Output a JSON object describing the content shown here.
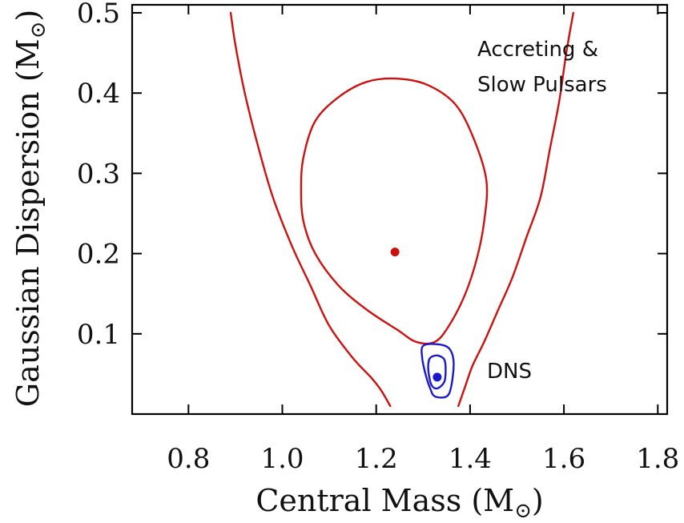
{
  "chart_data": {
    "type": "line",
    "xlabel": "Central Mass (M",
    "ylabel": "Gaussian Dispersion (M",
    "unit_symbol": "⊙",
    "xlim": [
      0.68,
      1.82
    ],
    "ylim": [
      0.0,
      0.51
    ],
    "x_ticks": [
      0.8,
      1.0,
      1.2,
      1.4,
      1.6,
      1.8
    ],
    "x_tick_labels": [
      "0.8",
      "1.0",
      "1.2",
      "1.4",
      "1.6",
      "1.8"
    ],
    "y_ticks": [
      0.1,
      0.2,
      0.3,
      0.4,
      0.5
    ],
    "y_tick_labels": [
      "0.1",
      "0.2",
      "0.3",
      "0.4",
      "0.5"
    ],
    "grid": false,
    "annotations": {
      "accreting_line1": "Accreting &",
      "accreting_line2": "Slow Pulsars",
      "dns": "DNS"
    },
    "series": [
      {
        "color": "#cc1111",
        "points": [
          [
            0.89,
            0.5
          ],
          [
            0.9,
            0.46
          ],
          [
            0.92,
            0.4
          ],
          [
            0.95,
            0.33
          ],
          [
            0.98,
            0.27
          ],
          [
            1.02,
            0.21
          ],
          [
            1.06,
            0.16
          ],
          [
            1.1,
            0.11
          ],
          [
            1.15,
            0.07
          ],
          [
            1.19,
            0.045
          ],
          [
            1.21,
            0.03
          ],
          [
            1.23,
            0.01
          ]
        ]
      },
      {
        "color": "#cc1111",
        "points": [
          [
            1.62,
            0.5
          ],
          [
            1.605,
            0.45
          ],
          [
            1.59,
            0.39
          ],
          [
            1.57,
            0.33
          ],
          [
            1.55,
            0.27
          ],
          [
            1.52,
            0.22
          ],
          [
            1.49,
            0.17
          ],
          [
            1.46,
            0.13
          ],
          [
            1.43,
            0.09
          ],
          [
            1.405,
            0.06
          ],
          [
            1.39,
            0.035
          ],
          [
            1.375,
            0.01
          ]
        ]
      },
      {
        "color": "#cc1111",
        "closed": true,
        "points": [
          [
            1.245,
            0.418
          ],
          [
            1.31,
            0.41
          ],
          [
            1.37,
            0.385
          ],
          [
            1.41,
            0.34
          ],
          [
            1.435,
            0.29
          ],
          [
            1.43,
            0.24
          ],
          [
            1.415,
            0.195
          ],
          [
            1.39,
            0.15
          ],
          [
            1.355,
            0.11
          ],
          [
            1.325,
            0.09
          ],
          [
            1.285,
            0.09
          ],
          [
            1.245,
            0.105
          ],
          [
            1.18,
            0.13
          ],
          [
            1.12,
            0.16
          ],
          [
            1.07,
            0.2
          ],
          [
            1.045,
            0.24
          ],
          [
            1.04,
            0.28
          ],
          [
            1.045,
            0.32
          ],
          [
            1.07,
            0.365
          ],
          [
            1.12,
            0.395
          ],
          [
            1.18,
            0.414
          ]
        ]
      },
      {
        "color": "#1a1acc",
        "closed": true,
        "points": [
          [
            1.3,
            0.085
          ],
          [
            1.33,
            0.087
          ],
          [
            1.355,
            0.082
          ],
          [
            1.365,
            0.065
          ],
          [
            1.36,
            0.035
          ],
          [
            1.35,
            0.022
          ],
          [
            1.325,
            0.022
          ],
          [
            1.315,
            0.032
          ],
          [
            1.305,
            0.05
          ],
          [
            1.298,
            0.07
          ]
        ]
      },
      {
        "color": "#1a1acc",
        "closed": true,
        "points": [
          [
            1.315,
            0.07
          ],
          [
            1.33,
            0.073
          ],
          [
            1.345,
            0.068
          ],
          [
            1.348,
            0.055
          ],
          [
            1.345,
            0.04
          ],
          [
            1.33,
            0.032
          ],
          [
            1.318,
            0.036
          ],
          [
            1.312,
            0.05
          ],
          [
            1.311,
            0.062
          ]
        ]
      }
    ],
    "markers": [
      {
        "x": 1.24,
        "y": 0.202,
        "color": "#cc1111"
      },
      {
        "x": 1.33,
        "y": 0.046,
        "color": "#1a1acc"
      }
    ]
  }
}
